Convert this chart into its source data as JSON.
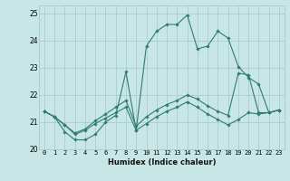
{
  "xlabel": "Humidex (Indice chaleur)",
  "xlim": [
    -0.5,
    23.5
  ],
  "ylim": [
    20,
    25.3
  ],
  "yticks": [
    20,
    21,
    22,
    23,
    24,
    25
  ],
  "xticks": [
    0,
    1,
    2,
    3,
    4,
    5,
    6,
    7,
    8,
    9,
    10,
    11,
    12,
    13,
    14,
    15,
    16,
    17,
    18,
    19,
    20,
    21,
    22,
    23
  ],
  "bg_color": "#c8e6e6",
  "line_color": "#2e7d6e",
  "grid_color": "#a8cece",
  "series": [
    {
      "x": [
        0,
        1,
        2,
        3,
        4,
        5,
        6,
        7,
        8,
        9,
        10,
        11,
        12,
        13,
        14,
        15,
        16,
        17,
        18,
        19,
        20,
        21,
        22,
        23
      ],
      "y": [
        21.4,
        21.2,
        20.65,
        20.35,
        20.35,
        20.55,
        21.0,
        21.25,
        22.85,
        20.7,
        23.8,
        24.35,
        24.6,
        24.6,
        24.95,
        23.7,
        23.8,
        24.35,
        24.1,
        23.05,
        22.65,
        22.4,
        21.35,
        21.45
      ]
    },
    {
      "x": [
        0,
        1,
        2,
        3,
        4,
        5,
        6,
        7,
        8,
        9,
        10,
        11,
        12,
        13,
        14,
        15,
        16,
        17,
        18,
        19,
        20,
        21,
        22,
        23
      ],
      "y": [
        21.4,
        21.2,
        20.9,
        20.6,
        20.75,
        21.05,
        21.3,
        21.55,
        21.8,
        20.85,
        21.2,
        21.45,
        21.65,
        21.8,
        22.0,
        21.85,
        21.6,
        21.4,
        21.25,
        22.8,
        22.75,
        21.35,
        21.35,
        21.45
      ]
    },
    {
      "x": [
        0,
        1,
        2,
        3,
        4,
        5,
        6,
        7,
        8,
        9,
        10,
        11,
        12,
        13,
        14,
        15,
        16,
        17,
        18,
        19,
        20,
        21,
        22,
        23
      ],
      "y": [
        21.4,
        21.2,
        20.9,
        20.55,
        20.7,
        20.95,
        21.15,
        21.35,
        21.55,
        20.7,
        20.95,
        21.2,
        21.4,
        21.55,
        21.75,
        21.55,
        21.3,
        21.1,
        20.9,
        21.1,
        21.35,
        21.3,
        21.35,
        21.45
      ]
    }
  ]
}
